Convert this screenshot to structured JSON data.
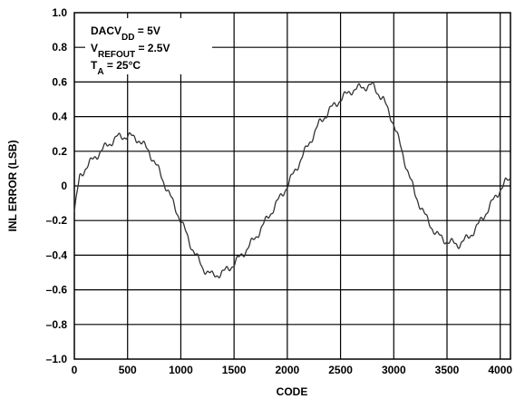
{
  "chart_data": {
    "type": "line",
    "title": "",
    "xlabel": "CODE",
    "ylabel": "INL ERROR (LSB)",
    "xlim": [
      0,
      4096
    ],
    "ylim": [
      -1.0,
      1.0
    ],
    "grid": true,
    "x_ticks": [
      0,
      500,
      1000,
      1500,
      2000,
      2500,
      3000,
      3500,
      4000
    ],
    "y_ticks": [
      1.0,
      0.8,
      0.6,
      0.4,
      0.2,
      0,
      -0.2,
      -0.4,
      -0.6,
      -0.8,
      -1.0
    ],
    "x_tick_labels": [
      "0",
      "500",
      "1000",
      "1500",
      "2000",
      "2500",
      "3000",
      "3500",
      "4000"
    ],
    "y_tick_labels": [
      "1.0",
      "0.8",
      "0.6",
      "0.4",
      "0.2",
      "0",
      "–0.2",
      "–0.4",
      "–0.6",
      "–0.8",
      "–1.0"
    ],
    "annotation": {
      "line1": {
        "base": "DACV",
        "sub": "DD",
        "rest": " = 5V"
      },
      "line2": {
        "base": "V",
        "sub": "REFOUT",
        "rest": " = 2.5V"
      },
      "line3": {
        "base": "T",
        "sub": "A",
        "rest": " = 25°C"
      }
    },
    "series": [
      {
        "color": "#333333",
        "x": [
          0,
          50,
          100,
          200,
          300,
          400,
          500,
          600,
          700,
          800,
          900,
          1000,
          1100,
          1200,
          1300,
          1400,
          1500,
          1600,
          1700,
          1800,
          1900,
          2000,
          2100,
          2200,
          2300,
          2400,
          2500,
          2600,
          2700,
          2800,
          2900,
          3000,
          3100,
          3200,
          3300,
          3400,
          3500,
          3600,
          3700,
          3800,
          3900,
          4000,
          4050,
          4095
        ],
        "y": [
          -0.15,
          0.05,
          0.1,
          0.17,
          0.23,
          0.28,
          0.29,
          0.27,
          0.2,
          0.08,
          -0.06,
          -0.2,
          -0.35,
          -0.47,
          -0.52,
          -0.5,
          -0.45,
          -0.38,
          -0.3,
          -0.2,
          -0.1,
          0.0,
          0.12,
          0.24,
          0.36,
          0.44,
          0.5,
          0.55,
          0.57,
          0.58,
          0.5,
          0.36,
          0.15,
          -0.05,
          -0.18,
          -0.28,
          -0.32,
          -0.34,
          -0.3,
          -0.22,
          -0.12,
          -0.02,
          0.02,
          0.04
        ]
      }
    ]
  }
}
